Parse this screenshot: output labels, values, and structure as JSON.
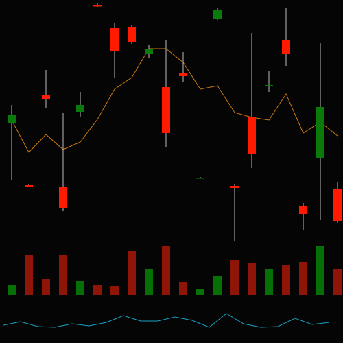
{
  "chart_data": {
    "type": "candlestick",
    "ylim": [
      0,
      500
    ],
    "up_color": "#0a7a0a",
    "down_color": "#ff1a00",
    "wick_color": "#bbbbbb",
    "open": [
      320,
      231,
      361,
      228,
      337,
      492,
      459,
      460,
      421,
      373,
      394,
      241,
      473,
      229,
      329,
      376,
      442,
      200,
      269,
      225
    ],
    "high": [
      347,
      232,
      398,
      335,
      366,
      495,
      466,
      463,
      434,
      441,
      424,
      242,
      489,
      232,
      452,
      396,
      489,
      204,
      437,
      235
    ],
    "low": [
      238,
      227,
      342,
      193,
      330,
      490,
      387,
      436,
      416,
      285,
      381,
      240,
      471,
      148,
      255,
      366,
      404,
      164,
      180,
      175
    ],
    "close": [
      333,
      228,
      355,
      197,
      347,
      491,
      426,
      439,
      429,
      306,
      389,
      241,
      485,
      226,
      276,
      376,
      421,
      188,
      344,
      178
    ],
    "ma": {
      "color": "#d07a10",
      "values": [
        325,
        278,
        304,
        282,
        293,
        326,
        370,
        387,
        429,
        429,
        409,
        370,
        375,
        336,
        329,
        325,
        363,
        306,
        322,
        302
      ]
    },
    "volume": {
      "up_color": "#067006",
      "down_color": "#8e1508",
      "values": [
        15,
        59,
        23,
        58,
        20,
        14,
        13,
        64,
        38,
        71,
        19,
        9,
        27,
        51,
        46,
        38,
        44,
        48,
        72,
        38
      ]
    },
    "indicator": {
      "color": "#1aa3c4",
      "values": [
        26,
        31,
        24,
        23,
        28,
        25,
        30,
        40,
        32,
        32,
        38,
        33,
        23,
        43,
        28,
        23,
        24,
        36,
        27,
        30
      ]
    }
  }
}
